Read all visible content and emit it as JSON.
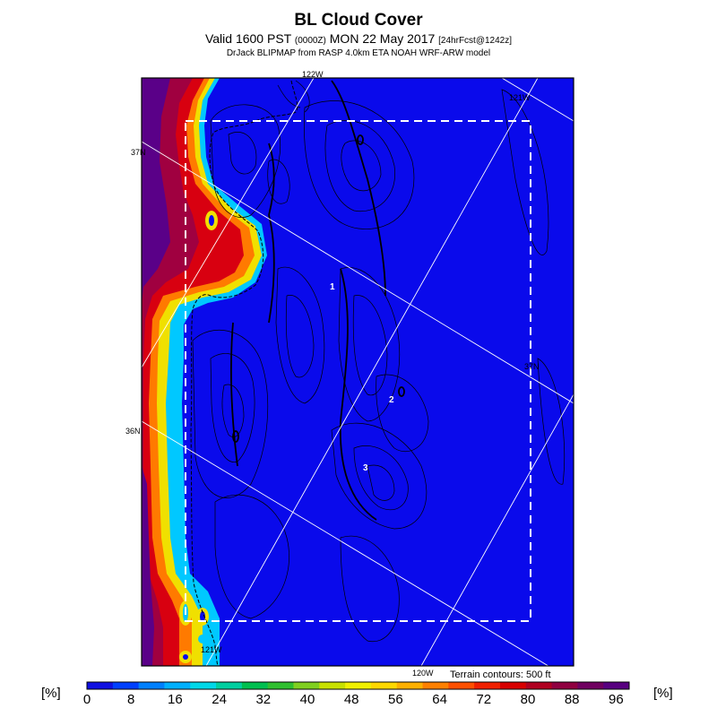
{
  "header": {
    "title": "BL Cloud Cover",
    "valid_prefix": "Valid 1600 PST ",
    "valid_z": "(0000Z)",
    "valid_date": " MON 22 May 2017 ",
    "forecast": "[24hrFcst@1242z]",
    "model_line": "DrJack BLIPMAP from RASP 4.0km ETA NOAH WRF-ARW model"
  },
  "map": {
    "lat_labels": [
      "37N",
      "36N"
    ],
    "lon_labels": [
      "122W",
      "121W",
      "121W",
      "120W"
    ],
    "side_labels": [
      "121W",
      "37N"
    ],
    "site_labels": [
      "1",
      "2",
      "3"
    ],
    "terrain_note": "Terrain contours: 500 ft"
  },
  "colorbar": {
    "unit_left": "[%]",
    "unit_right": "[%]",
    "ticks": [
      "0",
      "8",
      "16",
      "24",
      "32",
      "40",
      "48",
      "56",
      "64",
      "72",
      "80",
      "88",
      "96"
    ],
    "colors": [
      "#1010e0",
      "#0040ff",
      "#0080ff",
      "#00b0ff",
      "#00d8e8",
      "#00d0a0",
      "#00c050",
      "#30c030",
      "#80d020",
      "#c8e000",
      "#f0f000",
      "#ffd800",
      "#ffb000",
      "#ff8000",
      "#ff5000",
      "#f02000",
      "#d80000",
      "#b00020",
      "#900040",
      "#700060",
      "#580080"
    ]
  },
  "colors": {
    "ocean_field": "#0a0aeb",
    "frame": "#000000",
    "box": "#ffffff"
  }
}
